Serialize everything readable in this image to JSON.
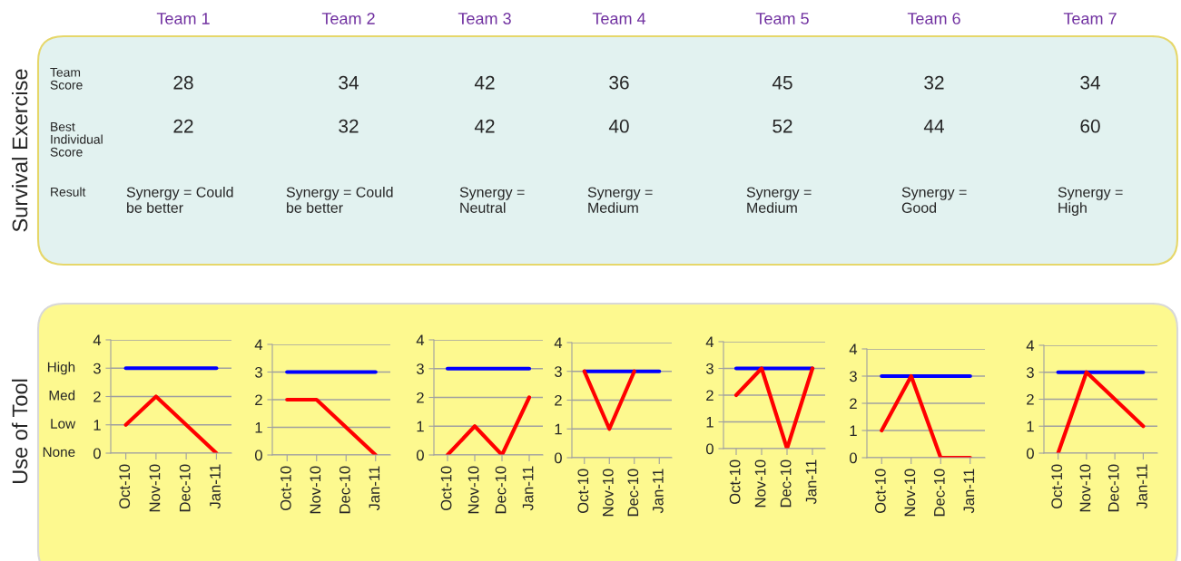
{
  "chart_data": [
    {
      "type": "other",
      "title": "Survival Exercise",
      "categories": [
        "Team 1",
        "Team 2",
        "Team 3",
        "Team 4",
        "Team 5",
        "Team 6",
        "Team 7"
      ],
      "data_labels": true,
      "series": [
        {
          "name": "Team Score",
          "values": [
            28,
            34,
            42,
            36,
            45,
            32,
            34
          ]
        },
        {
          "name": "Best Individual Score",
          "values": [
            22,
            32,
            42,
            40,
            52,
            44,
            60
          ]
        },
        {
          "name": "Result",
          "values": [
            null,
            null,
            null,
            null,
            null,
            null,
            null
          ],
          "value_labels": [
            "Synergy = Could be better",
            "Synergy = Could be better",
            "Synergy = Neutral",
            "Synergy = Medium",
            "Synergy = Medium",
            "Synergy = Good",
            "Synergy = High"
          ]
        }
      ]
    },
    {
      "type": "line",
      "ylabel": "Use of Tool",
      "categories": [
        "Oct-10",
        "Nov-10",
        "Dec-10",
        "Jan-11"
      ],
      "ylim": [
        0,
        4
      ],
      "yticks": [
        0,
        1,
        2,
        3,
        4
      ],
      "grid": "y",
      "annotations": [
        "High",
        "Med",
        "Low",
        "None"
      ],
      "series": [
        {
          "color": "#0000ff",
          "values": [
            3,
            3,
            3,
            3
          ]
        },
        {
          "color": "#ff0000",
          "values": [
            1,
            2,
            1,
            0
          ]
        }
      ]
    },
    {
      "type": "line",
      "categories": [
        "Oct-10",
        "Nov-10",
        "Dec-10",
        "Jan-11"
      ],
      "ylim": [
        0,
        4
      ],
      "yticks": [
        0,
        1,
        2,
        3,
        4
      ],
      "grid": "y",
      "series": [
        {
          "color": "#0000ff",
          "values": [
            3,
            3,
            3,
            3
          ]
        },
        {
          "color": "#ff0000",
          "values": [
            2,
            2,
            1,
            0
          ]
        }
      ]
    },
    {
      "type": "line",
      "categories": [
        "Oct-10",
        "Nov-10",
        "Dec-10",
        "Jan-11"
      ],
      "ylim": [
        0,
        4
      ],
      "yticks": [
        0,
        1,
        2,
        3,
        4
      ],
      "grid": "y",
      "series": [
        {
          "color": "#0000ff",
          "values": [
            3,
            3,
            3,
            3
          ]
        },
        {
          "color": "#ff0000",
          "values": [
            0,
            1,
            0,
            2
          ]
        }
      ]
    },
    {
      "type": "line",
      "categories": [
        "Oct-10",
        "Nov-10",
        "Dec-10",
        "Jan-11"
      ],
      "ylim": [
        0,
        4
      ],
      "yticks": [
        0,
        1,
        2,
        3,
        4
      ],
      "grid": "y",
      "series": [
        {
          "color": "#0000ff",
          "values": [
            3,
            3,
            3,
            3
          ]
        },
        {
          "color": "#ff0000",
          "values": [
            3,
            1,
            3,
            null
          ]
        }
      ]
    },
    {
      "type": "line",
      "categories": [
        "Oct-10",
        "Nov-10",
        "Dec-10",
        "Jan-11"
      ],
      "ylim": [
        0,
        4
      ],
      "yticks": [
        0,
        1,
        2,
        3,
        4
      ],
      "grid": "y",
      "series": [
        {
          "color": "#0000ff",
          "values": [
            3,
            3,
            3,
            3
          ]
        },
        {
          "color": "#ff0000",
          "values": [
            2,
            3,
            0,
            3
          ]
        }
      ]
    },
    {
      "type": "line",
      "categories": [
        "Oct-10",
        "Nov-10",
        "Dec-10",
        "Jan-11"
      ],
      "ylim": [
        0,
        4
      ],
      "yticks": [
        0,
        1,
        2,
        3,
        4
      ],
      "grid": "y",
      "series": [
        {
          "color": "#0000ff",
          "values": [
            3,
            3,
            3,
            3
          ]
        },
        {
          "color": "#ff0000",
          "values": [
            1,
            3,
            0,
            0
          ]
        }
      ]
    },
    {
      "type": "line",
      "categories": [
        "Oct-10",
        "Nov-10",
        "Dec-10",
        "Jan-11"
      ],
      "ylim": [
        0,
        4
      ],
      "yticks": [
        0,
        1,
        2,
        3,
        4
      ],
      "grid": "y",
      "series": [
        {
          "color": "#0000ff",
          "values": [
            3,
            3,
            3,
            3
          ]
        },
        {
          "color": "#ff0000",
          "values": [
            0,
            3,
            2,
            1
          ]
        }
      ]
    }
  ]
}
